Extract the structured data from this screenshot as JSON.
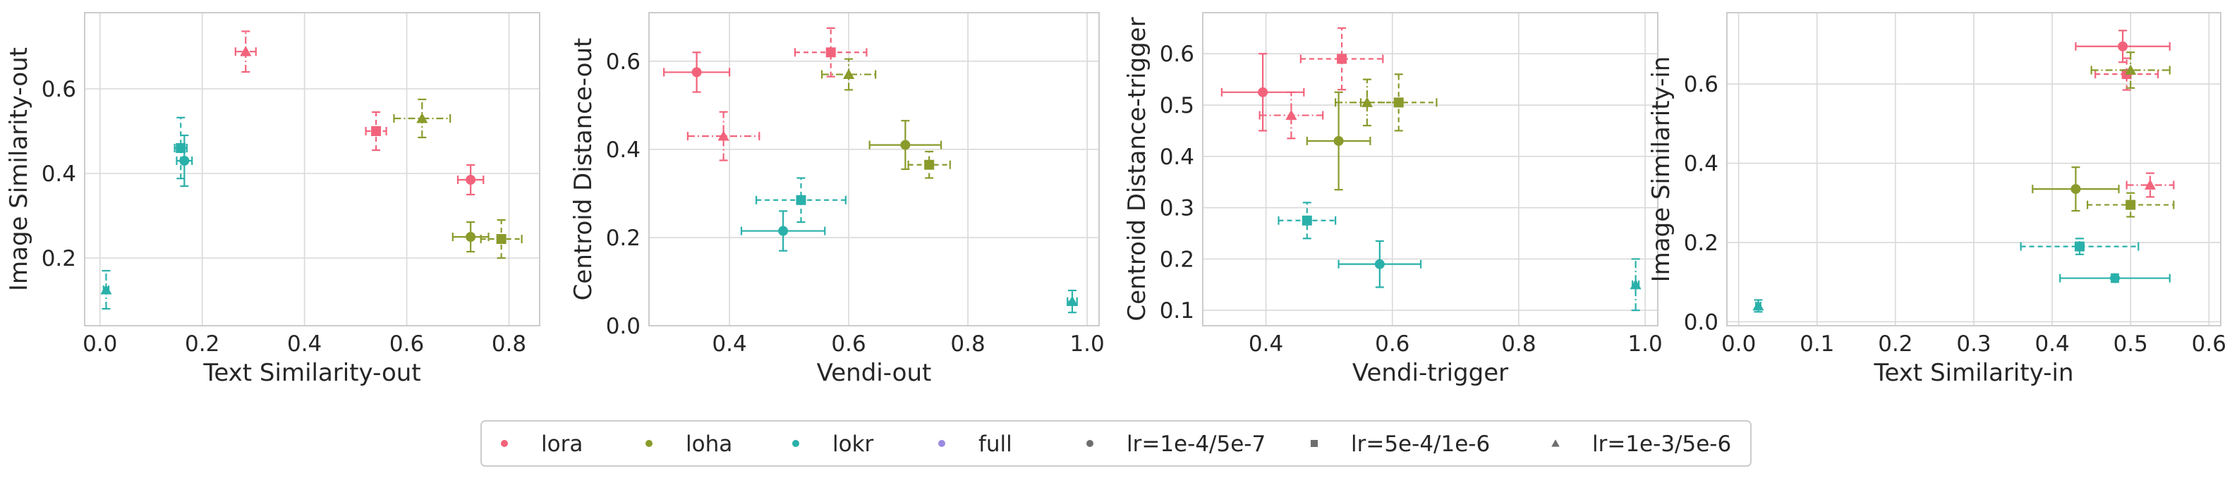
{
  "colors": {
    "lora": "#f2637b",
    "loha": "#8a9a2b",
    "lokr": "#2ab0aa",
    "full": "#9b8be0",
    "lr_marker": "#6e6e6e",
    "grid": "#d9d9d9",
    "frame": "#cccccc",
    "text": "#262626"
  },
  "legend": [
    {
      "label": "lora",
      "kind": "color",
      "key": "lora",
      "marker": "circle"
    },
    {
      "label": "loha",
      "kind": "color",
      "key": "loha",
      "marker": "circle"
    },
    {
      "label": "lokr",
      "kind": "color",
      "key": "lokr",
      "marker": "circle"
    },
    {
      "label": "full",
      "kind": "color",
      "key": "full",
      "marker": "circle"
    },
    {
      "label": "lr=1e-4/5e-7",
      "kind": "lr",
      "marker": "circle",
      "linestyle": "solid"
    },
    {
      "label": "lr=5e-4/1e-6",
      "kind": "lr",
      "marker": "square",
      "linestyle": "dashed"
    },
    {
      "label": "lr=1e-3/5e-6",
      "kind": "lr",
      "marker": "triangle",
      "linestyle": "dashdot"
    }
  ],
  "chart_data": [
    {
      "type": "scatter",
      "xlabel": "Text Similarity-out",
      "ylabel": "Image Similarity-out",
      "xlim": [
        -0.03,
        0.86
      ],
      "ylim": [
        0.04,
        0.78
      ],
      "xticks": [
        0.0,
        0.2,
        0.4,
        0.6,
        0.8
      ],
      "xtick_labels": [
        "0.0",
        "0.2",
        "0.4",
        "0.6",
        "0.8"
      ],
      "yticks": [
        0.2,
        0.4,
        0.6
      ],
      "ytick_labels": [
        "0.2",
        "0.4",
        "0.6"
      ],
      "points": [
        {
          "method": "lora",
          "lr": "lr=1e-4/5e-7",
          "x": 0.725,
          "y": 0.385,
          "xerr": 0.025,
          "yerr": 0.035
        },
        {
          "method": "lora",
          "lr": "lr=5e-4/1e-6",
          "x": 0.54,
          "y": 0.5,
          "xerr": 0.02,
          "yerr": 0.045
        },
        {
          "method": "lora",
          "lr": "lr=1e-3/5e-6",
          "x": 0.285,
          "y": 0.688,
          "xerr": 0.02,
          "yerr": 0.048
        },
        {
          "method": "loha",
          "lr": "lr=1e-4/5e-7",
          "x": 0.725,
          "y": 0.25,
          "xerr": 0.035,
          "yerr": 0.035
        },
        {
          "method": "loha",
          "lr": "lr=5e-4/1e-6",
          "x": 0.785,
          "y": 0.245,
          "xerr": 0.04,
          "yerr": 0.045
        },
        {
          "method": "loha",
          "lr": "lr=1e-3/5e-6",
          "x": 0.63,
          "y": 0.53,
          "xerr": 0.055,
          "yerr": 0.045
        },
        {
          "method": "lokr",
          "lr": "lr=1e-4/5e-7",
          "x": 0.165,
          "y": 0.43,
          "xerr": 0.015,
          "yerr": 0.06
        },
        {
          "method": "lokr",
          "lr": "lr=5e-4/1e-6",
          "x": 0.158,
          "y": 0.46,
          "xerr": 0.012,
          "yerr": 0.072
        },
        {
          "method": "lokr",
          "lr": "lr=1e-3/5e-6",
          "x": 0.012,
          "y": 0.125,
          "xerr": 0.005,
          "yerr": 0.045
        }
      ]
    },
    {
      "type": "scatter",
      "xlabel": "Vendi-out",
      "ylabel": "Centroid Distance-out",
      "xlim": [
        0.265,
        1.02
      ],
      "ylim": [
        0.0,
        0.71
      ],
      "xticks": [
        0.4,
        0.6,
        0.8,
        1.0
      ],
      "xtick_labels": [
        "0.4",
        "0.6",
        "0.8",
        "1.0"
      ],
      "yticks": [
        0.0,
        0.2,
        0.4,
        0.6
      ],
      "ytick_labels": [
        "0.0",
        "0.2",
        "0.4",
        "0.6"
      ],
      "points": [
        {
          "method": "lora",
          "lr": "lr=1e-4/5e-7",
          "x": 0.345,
          "y": 0.575,
          "xerr": 0.055,
          "yerr": 0.045
        },
        {
          "method": "lora",
          "lr": "lr=5e-4/1e-6",
          "x": 0.57,
          "y": 0.62,
          "xerr": 0.06,
          "yerr": 0.055
        },
        {
          "method": "lora",
          "lr": "lr=1e-3/5e-6",
          "x": 0.39,
          "y": 0.43,
          "xerr": 0.06,
          "yerr": 0.055
        },
        {
          "method": "loha",
          "lr": "lr=1e-4/5e-7",
          "x": 0.695,
          "y": 0.41,
          "xerr": 0.06,
          "yerr": 0.055
        },
        {
          "method": "loha",
          "lr": "lr=5e-4/1e-6",
          "x": 0.735,
          "y": 0.365,
          "xerr": 0.035,
          "yerr": 0.03
        },
        {
          "method": "loha",
          "lr": "lr=1e-3/5e-6",
          "x": 0.6,
          "y": 0.57,
          "xerr": 0.045,
          "yerr": 0.035
        },
        {
          "method": "lokr",
          "lr": "lr=1e-4/5e-7",
          "x": 0.49,
          "y": 0.215,
          "xerr": 0.07,
          "yerr": 0.045
        },
        {
          "method": "lokr",
          "lr": "lr=5e-4/1e-6",
          "x": 0.52,
          "y": 0.285,
          "xerr": 0.075,
          "yerr": 0.05
        },
        {
          "method": "lokr",
          "lr": "lr=1e-3/5e-6",
          "x": 0.975,
          "y": 0.055,
          "xerr": 0.008,
          "yerr": 0.025
        }
      ]
    },
    {
      "type": "scatter",
      "xlabel": "Vendi-trigger",
      "ylabel": "Centroid Distance-trigger",
      "xlim": [
        0.3,
        1.02
      ],
      "ylim": [
        0.07,
        0.68
      ],
      "xticks": [
        0.4,
        0.6,
        0.8,
        1.0
      ],
      "xtick_labels": [
        "0.4",
        "0.6",
        "0.8",
        "1.0"
      ],
      "yticks": [
        0.1,
        0.2,
        0.3,
        0.4,
        0.5,
        0.6
      ],
      "ytick_labels": [
        "0.1",
        "0.2",
        "0.3",
        "0.4",
        "0.5",
        "0.6"
      ],
      "points": [
        {
          "method": "lora",
          "lr": "lr=1e-4/5e-7",
          "x": 0.395,
          "y": 0.525,
          "xerr": 0.065,
          "yerr": 0.075
        },
        {
          "method": "lora",
          "lr": "lr=5e-4/1e-6",
          "x": 0.52,
          "y": 0.59,
          "xerr": 0.065,
          "yerr": 0.06
        },
        {
          "method": "lora",
          "lr": "lr=1e-3/5e-6",
          "x": 0.44,
          "y": 0.48,
          "xerr": 0.05,
          "yerr": 0.045
        },
        {
          "method": "loha",
          "lr": "lr=1e-4/5e-7",
          "x": 0.515,
          "y": 0.43,
          "xerr": 0.05,
          "yerr": 0.095
        },
        {
          "method": "loha",
          "lr": "lr=5e-4/1e-6",
          "x": 0.61,
          "y": 0.505,
          "xerr": 0.06,
          "yerr": 0.055
        },
        {
          "method": "loha",
          "lr": "lr=1e-3/5e-6",
          "x": 0.56,
          "y": 0.505,
          "xerr": 0.05,
          "yerr": 0.045
        },
        {
          "method": "lokr",
          "lr": "lr=1e-4/5e-7",
          "x": 0.58,
          "y": 0.19,
          "xerr": 0.065,
          "yerr": 0.045
        },
        {
          "method": "lokr",
          "lr": "lr=5e-4/1e-6",
          "x": 0.465,
          "y": 0.275,
          "xerr": 0.045,
          "yerr": 0.035
        },
        {
          "method": "lokr",
          "lr": "lr=1e-3/5e-6",
          "x": 0.985,
          "y": 0.15,
          "xerr": 0.005,
          "yerr": 0.05
        }
      ]
    },
    {
      "type": "scatter",
      "xlabel": "Text Similarity-in",
      "ylabel": "Image Similarity-in",
      "xlim": [
        -0.015,
        0.615
      ],
      "ylim": [
        -0.01,
        0.78
      ],
      "xticks": [
        0.0,
        0.1,
        0.2,
        0.3,
        0.4,
        0.5,
        0.6
      ],
      "xtick_labels": [
        "0.0",
        "0.1",
        "0.2",
        "0.3",
        "0.4",
        "0.5",
        "0.6"
      ],
      "yticks": [
        0.0,
        0.2,
        0.4,
        0.6
      ],
      "ytick_labels": [
        "0.0",
        "0.2",
        "0.4",
        "0.6"
      ],
      "points": [
        {
          "method": "lora",
          "lr": "lr=1e-4/5e-7",
          "x": 0.49,
          "y": 0.695,
          "xerr": 0.06,
          "yerr": 0.04
        },
        {
          "method": "lora",
          "lr": "lr=5e-4/1e-6",
          "x": 0.495,
          "y": 0.625,
          "xerr": 0.04,
          "yerr": 0.04
        },
        {
          "method": "lora",
          "lr": "lr=1e-3/5e-6",
          "x": 0.525,
          "y": 0.345,
          "xerr": 0.03,
          "yerr": 0.03
        },
        {
          "method": "loha",
          "lr": "lr=1e-4/5e-7",
          "x": 0.43,
          "y": 0.335,
          "xerr": 0.055,
          "yerr": 0.055
        },
        {
          "method": "loha",
          "lr": "lr=5e-4/1e-6",
          "x": 0.5,
          "y": 0.295,
          "xerr": 0.055,
          "yerr": 0.03
        },
        {
          "method": "loha",
          "lr": "lr=1e-3/5e-6",
          "x": 0.5,
          "y": 0.635,
          "xerr": 0.05,
          "yerr": 0.045
        },
        {
          "method": "lokr",
          "lr": "lr=1e-4/5e-7",
          "x": 0.48,
          "y": 0.11,
          "xerr": 0.07,
          "yerr": 0.01
        },
        {
          "method": "lokr",
          "lr": "lr=5e-4/1e-6",
          "x": 0.435,
          "y": 0.19,
          "xerr": 0.075,
          "yerr": 0.02
        },
        {
          "method": "lokr",
          "lr": "lr=1e-3/5e-6",
          "x": 0.025,
          "y": 0.04,
          "xerr": 0.003,
          "yerr": 0.015
        }
      ]
    }
  ]
}
